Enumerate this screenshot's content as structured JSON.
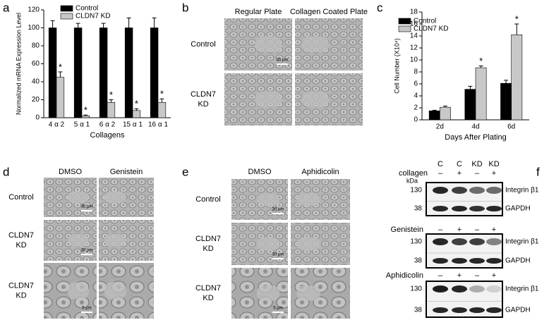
{
  "panel_labels": [
    "a",
    "b",
    "c",
    "d",
    "e",
    "f"
  ],
  "chart_data": [
    {
      "type": "bar",
      "ylabel": "Normalized mRNA Expression Level",
      "xlabel": "Collagens",
      "categories": [
        "4 α 2",
        "5 α 1",
        "6 α 2",
        "15 α 1",
        "16 α 1"
      ],
      "series": [
        {
          "name": "Control",
          "color": "#000000",
          "values": [
            100,
            100,
            100,
            100,
            100
          ],
          "errors": [
            8,
            5,
            5,
            11,
            11
          ]
        },
        {
          "name": "CLDN7 KD",
          "color": "#c8c8c8",
          "values": [
            45,
            2,
            17,
            8,
            17
          ],
          "errors": [
            6,
            1,
            3,
            2,
            4
          ],
          "annotations": [
            "*",
            "*",
            "*",
            "*",
            "*"
          ]
        }
      ],
      "ylim": [
        0,
        120
      ],
      "yticks": [
        0,
        20,
        40,
        60,
        80,
        100,
        120
      ],
      "legend": "upper left"
    },
    {
      "type": "bar",
      "ylabel": "Cell Number (X10⁴)",
      "xlabel": "Days After Plating",
      "categories": [
        "2d",
        "4d",
        "6d"
      ],
      "series": [
        {
          "name": "Control",
          "color": "#000000",
          "values": [
            1.5,
            5.1,
            6.1
          ],
          "errors": [
            0.1,
            0.5,
            0.5
          ]
        },
        {
          "name": "CLDN7 KD",
          "color": "#c8c8c8",
          "values": [
            2.1,
            8.7,
            14.2
          ],
          "errors": [
            0.2,
            0.3,
            1.8
          ],
          "annotations": [
            null,
            "*",
            "*"
          ]
        }
      ],
      "ylim": [
        0,
        18
      ],
      "yticks": [
        0,
        2,
        4,
        6,
        8,
        10,
        12,
        14,
        16,
        18
      ],
      "legend": "upper left"
    }
  ],
  "panel_b": {
    "columns": [
      "Regular Plate",
      "Collagen Coated Plate"
    ],
    "rows": [
      [
        "Control"
      ],
      [
        "CLDN7",
        "KD"
      ]
    ],
    "scale_bars": [
      "30 µm"
    ]
  },
  "panel_d": {
    "columns": [
      "DMSO",
      "Genistein"
    ],
    "rows": [
      [
        "Control"
      ],
      [
        "CLDN7",
        "KD"
      ],
      [
        "CLDN7",
        "KD"
      ]
    ],
    "scale_bars": [
      "30 µm",
      "30 µm",
      "5 µm"
    ]
  },
  "panel_e": {
    "columns": [
      "DMSO",
      "Aphidicolin"
    ],
    "rows": [
      [
        "Control"
      ],
      [
        "CLDN7",
        "KD"
      ],
      [
        "CLDN7",
        "KD"
      ]
    ],
    "scale_bars": [
      "30 µm",
      "30 µm",
      "5 µm"
    ]
  },
  "panel_f": {
    "lanes": [
      "C",
      "C",
      "KD",
      "KD"
    ],
    "unit": "kDa",
    "blots": [
      {
        "treatment": "collagen",
        "signs": [
          "–",
          "+",
          "–",
          "+"
        ],
        "markers": [
          130,
          38
        ],
        "proteins": [
          "Integrin β1",
          "GAPDH"
        ]
      },
      {
        "treatment": "Genistein",
        "signs": [
          "–",
          "+",
          "–",
          "+"
        ],
        "markers": [
          130,
          38
        ],
        "proteins": [
          "Integrin β1",
          "GAPDH"
        ]
      },
      {
        "treatment": "Aphidicolin",
        "signs": [
          "–",
          "+",
          "–",
          "+"
        ],
        "markers": [
          130,
          38
        ],
        "proteins": [
          "Integrin β1",
          "GAPDH"
        ]
      }
    ]
  }
}
